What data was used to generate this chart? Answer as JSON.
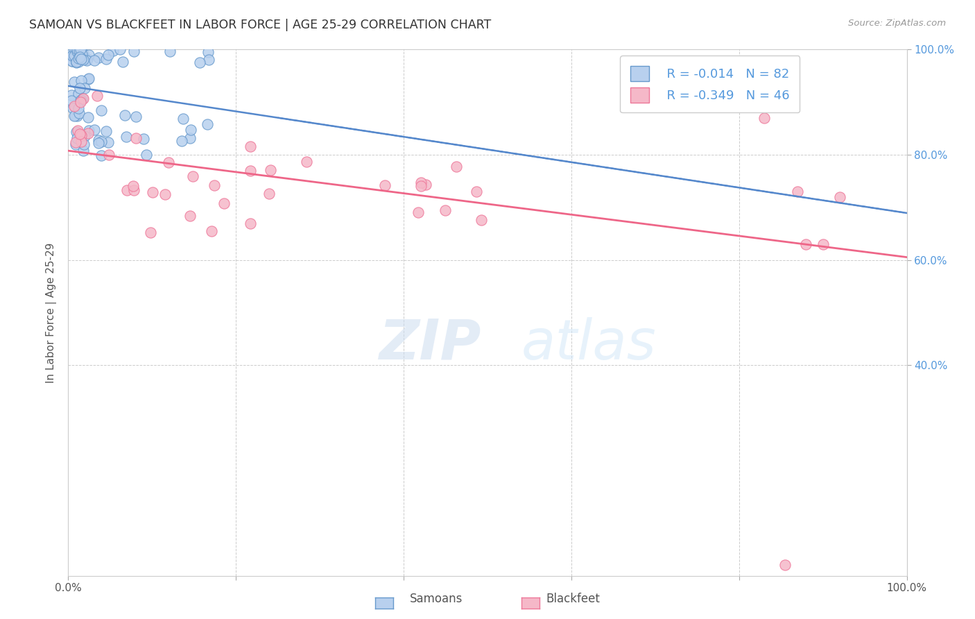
{
  "title": "SAMOAN VS BLACKFEET IN LABOR FORCE | AGE 25-29 CORRELATION CHART",
  "source": "Source: ZipAtlas.com",
  "ylabel": "In Labor Force | Age 25-29",
  "xlim": [
    0.0,
    1.0
  ],
  "ylim": [
    0.0,
    1.0
  ],
  "grid_color": "#cccccc",
  "background_color": "#ffffff",
  "samoans_fill": "#b8d0ee",
  "samoans_edge": "#6699cc",
  "blackfeet_fill": "#f5b8c8",
  "blackfeet_edge": "#ee7799",
  "samoans_line_color": "#5588cc",
  "blackfeet_line_color": "#ee6688",
  "right_tick_color": "#5599dd",
  "legend_r_samoan": "R = -0.014",
  "legend_n_samoan": "N = 82",
  "legend_r_blackfeet": "R = -0.349",
  "legend_n_blackfeet": "N = 46",
  "watermark_zip": "ZIP",
  "watermark_atlas": "atlas"
}
